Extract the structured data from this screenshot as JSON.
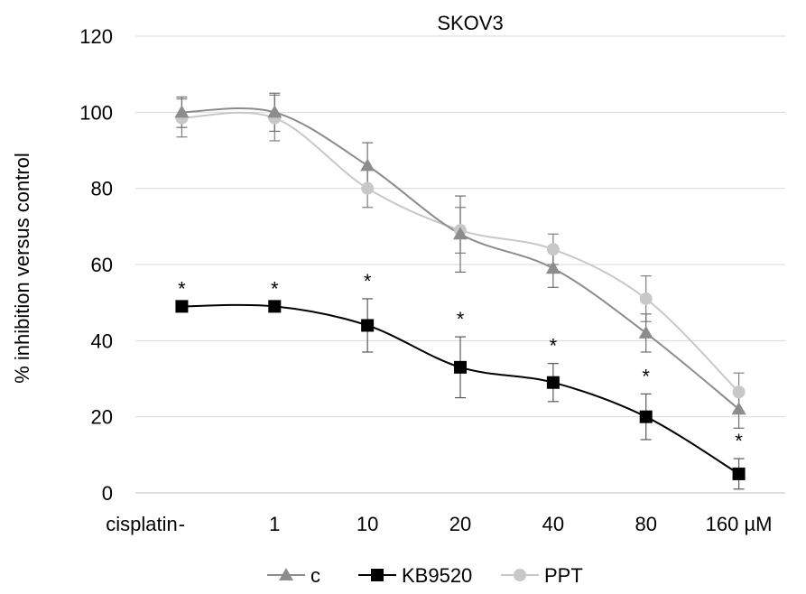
{
  "chart_data": {
    "type": "line",
    "title": "SKOV3",
    "ylabel": "% inhibition versus control",
    "x_row_label": "cisplatin",
    "categories": [
      "-",
      "1",
      "10",
      "20",
      "40",
      "80",
      "160 µM"
    ],
    "ylim": [
      0,
      120
    ],
    "yticks": [
      0,
      20,
      40,
      60,
      80,
      100,
      120
    ],
    "grid": true,
    "legend_position": "bottom",
    "series": [
      {
        "name": "c",
        "marker": "triangle",
        "color": "#8c8c8c",
        "values": [
          100,
          100,
          86,
          68,
          59,
          42,
          22
        ],
        "errors": [
          4,
          5,
          6,
          10,
          5,
          5,
          5
        ]
      },
      {
        "name": "KB9520",
        "marker": "square",
        "color": "#000000",
        "values": [
          49,
          49,
          44,
          33,
          29,
          20,
          5
        ],
        "errors": [
          0,
          0,
          7,
          8,
          5,
          6,
          4
        ]
      },
      {
        "name": "PPT",
        "marker": "circle",
        "color": "#c8c8c8",
        "values": [
          98.5,
          98.5,
          80,
          69,
          64,
          51,
          26.5
        ],
        "errors": [
          5,
          6,
          5,
          6,
          4,
          6,
          5
        ]
      }
    ],
    "significance_marks": [
      "*",
      "*",
      "*",
      "*",
      "*",
      "*",
      "*"
    ]
  }
}
